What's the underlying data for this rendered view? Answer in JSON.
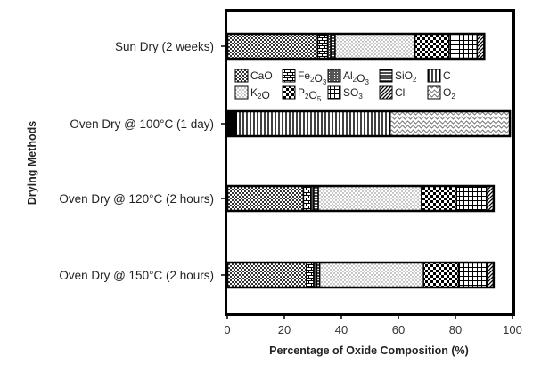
{
  "chart_data": {
    "type": "bar",
    "orientation": "horizontal",
    "stacked": true,
    "xlabel": "Percentage of Oxide Composition (%)",
    "ylabel": "Drying Methods",
    "xlim": [
      0,
      100
    ],
    "xticks": [
      0,
      20,
      40,
      60,
      80,
      100
    ],
    "grid": false,
    "legend_position": "inside-top",
    "categories": [
      "Sun Dry (2 weeks)",
      "Oven Dry @ 100°C (1 day)",
      "Oven Dry @ 120°C (2 hours)",
      "Oven Dry @ 150°C (2 hours)"
    ],
    "series": [
      {
        "name": "CaO",
        "label": "CaO",
        "sub": "",
        "label2": "",
        "sub2": "",
        "pattern": "checker",
        "values": [
          31.7,
          0,
          26.7,
          27.8
        ]
      },
      {
        "name": "Fe2O3",
        "label": "Fe",
        "sub": "2",
        "label2": "O",
        "sub2": "3",
        "pattern": "brick",
        "values": [
          3.5,
          0,
          2.6,
          2.5
        ]
      },
      {
        "name": "Al2O3",
        "label": "Al",
        "sub": "2",
        "label2": "O",
        "sub2": "3",
        "pattern": "dense",
        "values": [
          1.1,
          0,
          1.0,
          1.1
        ]
      },
      {
        "name": "SiO2",
        "label": "SiO",
        "sub": "2",
        "label2": "",
        "sub2": "",
        "pattern": "hlines",
        "values": [
          1.5,
          0,
          1.6,
          1.0
        ]
      },
      {
        "name": "C",
        "label": "C",
        "sub": "",
        "label2": "",
        "sub2": "",
        "pattern": "vlines",
        "values": [
          0,
          53.9,
          0,
          0
        ]
      },
      {
        "name": "K2O",
        "label": "K",
        "sub": "2",
        "label2": "O",
        "sub2": "",
        "pattern": "dots",
        "values": [
          28.0,
          0,
          36.2,
          36.4
        ]
      },
      {
        "name": "P2O5",
        "label": "P",
        "sub": "2",
        "label2": "O",
        "sub2": "5",
        "pattern": "bigcheck",
        "values": [
          12.0,
          0,
          12.3,
          12.3
        ]
      },
      {
        "name": "SO3",
        "label": "SO",
        "sub": "3",
        "label2": "",
        "sub2": "",
        "pattern": "grid",
        "values": [
          9.8,
          0,
          10.5,
          9.9
        ]
      },
      {
        "name": "Cl",
        "label": "Cl",
        "sub": "",
        "label2": "",
        "sub2": "",
        "pattern": "diag",
        "values": [
          2.5,
          0,
          2.5,
          2.4
        ]
      },
      {
        "name": "O2",
        "label": "O",
        "sub": "2",
        "label2": "",
        "sub2": "",
        "pattern": "wave",
        "values": [
          0,
          42.0,
          0,
          0
        ]
      }
    ],
    "extra_segments": [
      {
        "category": "Oven Dry @ 100°C (1 day)",
        "position": "start",
        "value": 3.2,
        "color": "#000000"
      }
    ]
  }
}
